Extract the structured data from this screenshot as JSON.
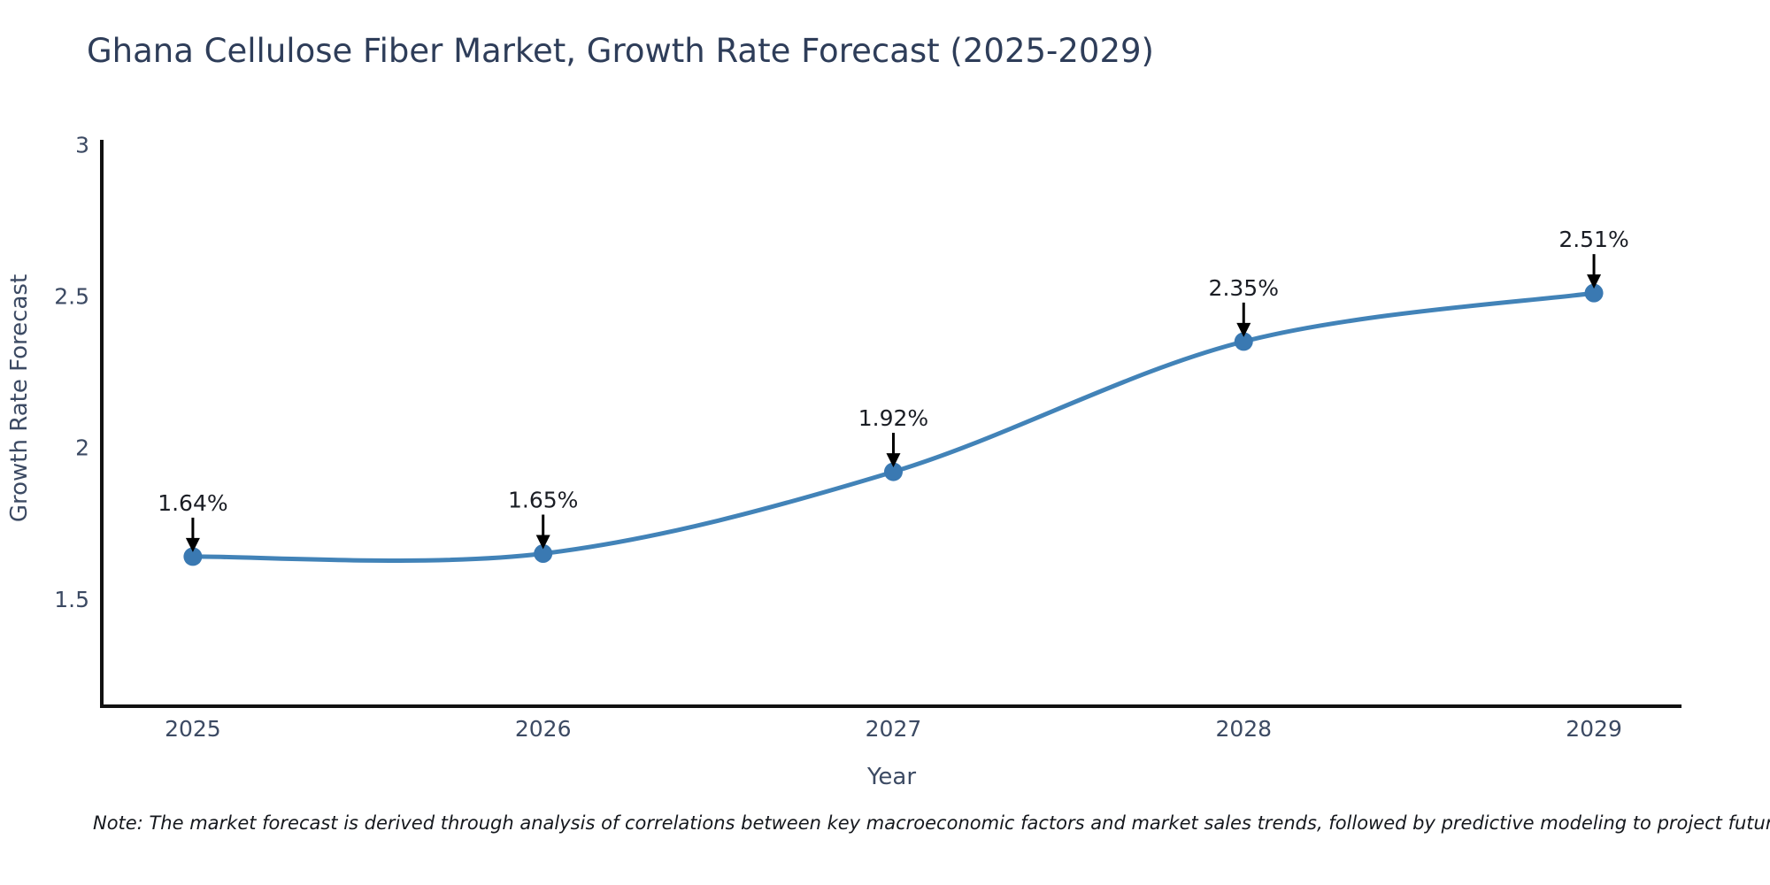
{
  "note": "Note: The market forecast is derived through analysis of correlations between key macroeconomic factors and market sales trends, followed by predictive modeling to project future sales",
  "chart_data": {
    "type": "line",
    "title": "Ghana Cellulose Fiber Market, Growth Rate Forecast (2025-2029)",
    "xlabel": "Year",
    "ylabel": "Growth Rate Forecast",
    "x": [
      2025,
      2026,
      2027,
      2028,
      2029
    ],
    "values": [
      1.64,
      1.65,
      1.92,
      2.35,
      2.51
    ],
    "point_labels": [
      "1.64%",
      "1.65%",
      "1.92%",
      "2.35%",
      "2.51%"
    ],
    "xticks": [
      2025,
      2026,
      2027,
      2028,
      2029
    ],
    "xtick_labels": [
      "2025",
      "2026",
      "2027",
      "2028",
      "2029"
    ],
    "yticks": [
      1.5,
      2,
      2.5,
      3
    ],
    "ytick_labels": [
      "1.5",
      "2",
      "2.5",
      "3"
    ],
    "xlim": [
      2024.74,
      2029.25
    ],
    "ylim": [
      1.146,
      3.01
    ],
    "grid": false,
    "legend": false,
    "line_shape": "spline",
    "colors": {
      "line": "#4283b8",
      "marker": "#3a79b2",
      "axis": "#111111",
      "title_text": "#2e3d59",
      "tick_text": "#3c4a63",
      "annotation_text": "#1a1d24",
      "arrow": "#000000"
    }
  }
}
